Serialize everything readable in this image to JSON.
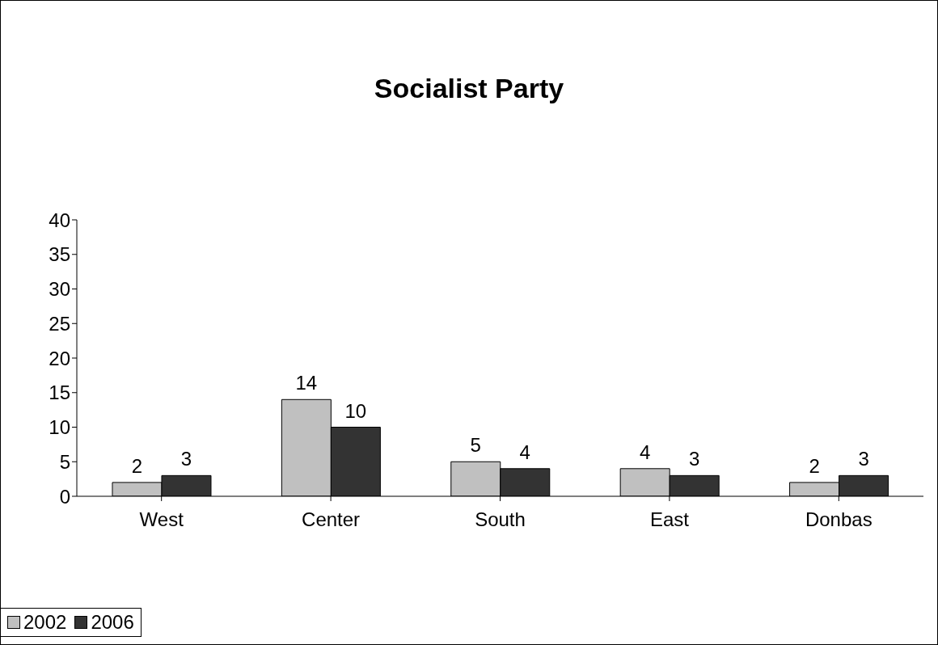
{
  "chart_data": {
    "type": "bar",
    "title": "Socialist Party",
    "categories": [
      "West",
      "Center",
      "South",
      "East",
      "Donbas"
    ],
    "series": [
      {
        "name": "2002",
        "color": "#c0c0c0",
        "values": [
          2,
          14,
          5,
          4,
          2
        ]
      },
      {
        "name": "2006",
        "color": "#333333",
        "values": [
          3,
          10,
          4,
          3,
          3
        ]
      }
    ],
    "ylim": [
      0,
      40
    ],
    "yticks": [
      0,
      5,
      10,
      15,
      20,
      25,
      30,
      35,
      40
    ],
    "grid": false,
    "legend": "bottom",
    "data_labels": true
  }
}
